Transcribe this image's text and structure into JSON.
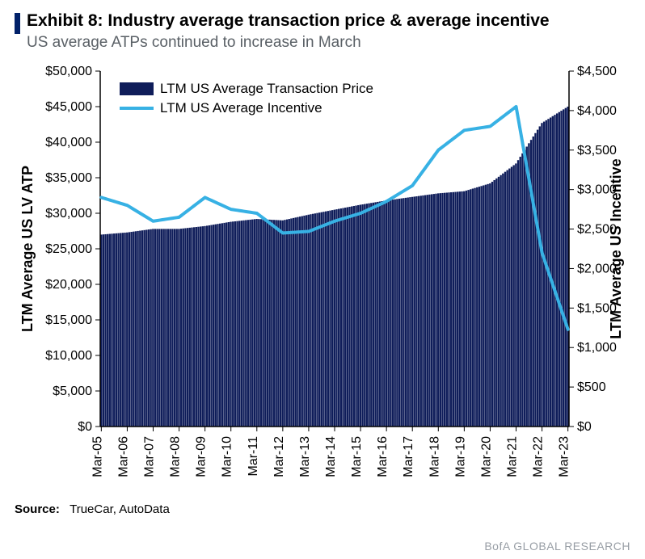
{
  "header": {
    "title": "Exhibit 8: Industry average transaction price & average incentive",
    "subtitle": "US average ATPs continued to increase in March"
  },
  "source": {
    "label": "Source:",
    "text": "TrueCar, AutoData"
  },
  "footer_brand": "BofA GLOBAL RESEARCH",
  "chart": {
    "type": "combo-bar-line",
    "background_color": "#ffffff",
    "axis_color": "#000000",
    "left_axis": {
      "title": "LTM Average US LV ATP",
      "title_fontsize": 18,
      "title_fontweight": "bold",
      "min": 0,
      "max": 50000,
      "tick_step": 5000,
      "tick_labels": [
        "$0",
        "$5,000",
        "$10,000",
        "$15,000",
        "$20,000",
        "$25,000",
        "$30,000",
        "$35,000",
        "$40,000",
        "$45,000",
        "$50,000"
      ],
      "tick_fontsize": 16
    },
    "right_axis": {
      "title": "LTM Average US Incentive",
      "title_fontsize": 18,
      "title_fontweight": "bold",
      "min": 0,
      "max": 4500,
      "tick_step": 500,
      "tick_labels": [
        "$0",
        "$500",
        "$1,000",
        "$1,500",
        "$2,000",
        "$2,500",
        "$3,000",
        "$3,500",
        "$4,000",
        "$4,500"
      ],
      "tick_fontsize": 16
    },
    "x_axis": {
      "interval_months": 12,
      "categories": [
        "Mar-05",
        "Mar-06",
        "Mar-07",
        "Mar-08",
        "Mar-09",
        "Mar-10",
        "Mar-11",
        "Mar-12",
        "Mar-13",
        "Mar-14",
        "Mar-15",
        "Mar-16",
        "Mar-17",
        "Mar-18",
        "Mar-19",
        "Mar-20",
        "Mar-21",
        "Mar-22",
        "Mar-23"
      ],
      "tick_fontsize": 16
    },
    "bars": {
      "label": "LTM US Average Transaction Price",
      "color": "#0f1d5a",
      "values_yearly": [
        27000,
        27300,
        27800,
        27800,
        28200,
        28800,
        29200,
        29000,
        29800,
        30500,
        31200,
        31800,
        32300,
        32800,
        33100,
        34200,
        37000,
        42700,
        45000
      ],
      "n_points": 217
    },
    "line": {
      "label": "LTM US Average Incentive",
      "color": "#37b1e4",
      "line_width": 4,
      "values_yearly": [
        2900,
        2800,
        2600,
        2650,
        2900,
        2750,
        2700,
        2450,
        2470,
        2600,
        2700,
        2850,
        3050,
        3500,
        3750,
        3800,
        4050,
        2200,
        1230
      ]
    },
    "legend": {
      "position": "top-left-inside"
    }
  }
}
